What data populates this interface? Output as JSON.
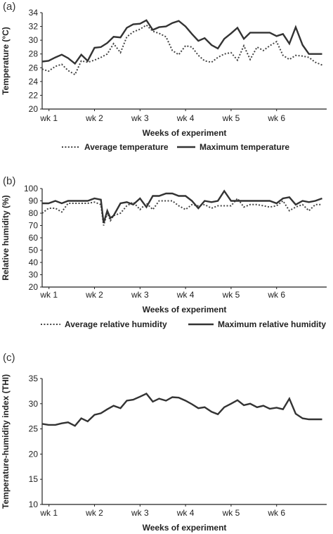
{
  "panels": [
    {
      "label": "(a)",
      "chart_data": {
        "type": "line",
        "xlabel": "Weeks of experiment",
        "ylabel": "Temperature (°C)",
        "ylim": [
          20,
          34
        ],
        "yticks": [
          20,
          22,
          24,
          26,
          28,
          30,
          32,
          34
        ],
        "xlim": [
          0.85,
          7.1
        ],
        "xticks": [
          {
            "label": "wk 1",
            "value": 1
          },
          {
            "label": "wk 2",
            "value": 2
          },
          {
            "label": "wk 3",
            "value": 3
          },
          {
            "label": "wk 4",
            "value": 4
          },
          {
            "label": "wk 5",
            "value": 5
          },
          {
            "label": "wk 6",
            "value": 6
          }
        ],
        "x": [
          0.85,
          0.99,
          1.14,
          1.28,
          1.42,
          1.57,
          1.71,
          1.85,
          2.0,
          2.14,
          2.28,
          2.42,
          2.57,
          2.71,
          2.85,
          3.0,
          3.14,
          3.28,
          3.42,
          3.57,
          3.71,
          3.85,
          4.0,
          4.14,
          4.28,
          4.42,
          4.57,
          4.71,
          4.85,
          5.0,
          5.14,
          5.28,
          5.42,
          5.57,
          5.71,
          5.85,
          6.0,
          6.14,
          6.28,
          6.42,
          6.57,
          6.71,
          6.85,
          7.0
        ],
        "series": [
          {
            "name": "Average temperature",
            "style": "dotted",
            "values": [
              25.8,
              25.5,
              26.2,
              26.5,
              25.6,
              25.0,
              27.0,
              26.8,
              27.1,
              27.5,
              28.0,
              29.5,
              28.2,
              30.5,
              31.2,
              31.6,
              32.2,
              31.3,
              31.0,
              30.5,
              28.5,
              27.9,
              29.2,
              29.0,
              27.8,
              27.0,
              26.8,
              27.5,
              28.0,
              28.2,
              27.1,
              29.2,
              27.2,
              29.0,
              28.5,
              29.2,
              29.8,
              27.8,
              27.2,
              27.8,
              27.7,
              27.5,
              26.8,
              26.4
            ]
          },
          {
            "name": "Maximum temperature",
            "style": "solid",
            "values": [
              26.9,
              27.0,
              27.5,
              27.9,
              27.4,
              26.6,
              27.9,
              27.0,
              28.9,
              29.0,
              29.6,
              30.5,
              30.4,
              31.8,
              32.3,
              32.4,
              32.9,
              31.5,
              31.9,
              32.0,
              32.5,
              32.8,
              32.0,
              30.9,
              29.9,
              30.3,
              29.3,
              28.8,
              30.2,
              31.0,
              31.8,
              30.2,
              31.1,
              31.1,
              31.1,
              31.1,
              30.6,
              30.9,
              29.5,
              31.9,
              29.3,
              28.0,
              28.0,
              28.0
            ]
          }
        ]
      }
    },
    {
      "label": "(b)",
      "chart_data": {
        "type": "line",
        "xlabel": "Weeks of experiment",
        "ylabel": "Relative humidity (%)",
        "ylim": [
          20,
          100
        ],
        "yticks": [
          20,
          30,
          40,
          50,
          60,
          70,
          80,
          90,
          100
        ],
        "xlim": [
          0.85,
          7.1
        ],
        "xticks": [
          {
            "label": "wk 1",
            "value": 1
          },
          {
            "label": "wk 2",
            "value": 2
          },
          {
            "label": "wk 3",
            "value": 3
          },
          {
            "label": "wk 4",
            "value": 4
          },
          {
            "label": "wk 5",
            "value": 5
          },
          {
            "label": "wk 6",
            "value": 6
          }
        ],
        "x": [
          0.85,
          0.99,
          1.14,
          1.28,
          1.42,
          1.57,
          1.71,
          1.85,
          2.0,
          2.14,
          2.2,
          2.28,
          2.35,
          2.42,
          2.57,
          2.71,
          2.85,
          3.0,
          3.14,
          3.28,
          3.42,
          3.57,
          3.71,
          3.85,
          4.0,
          4.14,
          4.28,
          4.42,
          4.57,
          4.71,
          4.85,
          5.0,
          5.14,
          5.28,
          5.42,
          5.57,
          5.71,
          5.85,
          6.0,
          6.14,
          6.28,
          6.42,
          6.57,
          6.71,
          6.85,
          7.0
        ],
        "series": [
          {
            "name": "Average relative humidity",
            "style": "dotted",
            "values": [
              80,
              84,
              84,
              81,
              88,
              88,
              88,
              88,
              89,
              87,
              70,
              80,
              74,
              78,
              80,
              86,
              89,
              83,
              88,
              83,
              90,
              90,
              90,
              86,
              83,
              87,
              86,
              87,
              84,
              86,
              86,
              86,
              92,
              85,
              87,
              87,
              86,
              85,
              86,
              90,
              82,
              85,
              87,
              82,
              87,
              87
            ]
          },
          {
            "name": "Maximum relative humidity",
            "style": "solid",
            "values": [
              88,
              88,
              90,
              88,
              90,
              90,
              90,
              90,
              92,
              91,
              72,
              82,
              76,
              78,
              88,
              89,
              87,
              92,
              85,
              94,
              94,
              96,
              96,
              94,
              94,
              90,
              84,
              90,
              89,
              90,
              98,
              90,
              90,
              90,
              90,
              90,
              90,
              90,
              88,
              92,
              93,
              87,
              90,
              89,
              90,
              92
            ]
          }
        ]
      }
    },
    {
      "label": "(c)",
      "chart_data": {
        "type": "line",
        "xlabel": "Weeks of experiment",
        "ylabel": "Temperature-humidity index (THI)",
        "ylim": [
          10,
          35
        ],
        "yticks": [
          10,
          15,
          20,
          25,
          30,
          35
        ],
        "xlim": [
          0.85,
          7.1
        ],
        "xticks": [
          {
            "label": "wk 1",
            "value": 1
          },
          {
            "label": "wk 2",
            "value": 2
          },
          {
            "label": "wk 3",
            "value": 3
          },
          {
            "label": "wk 4",
            "value": 4
          },
          {
            "label": "wk 5",
            "value": 5
          },
          {
            "label": "wk 6",
            "value": 6
          }
        ],
        "x": [
          0.85,
          0.99,
          1.14,
          1.28,
          1.42,
          1.57,
          1.71,
          1.85,
          2.0,
          2.14,
          2.28,
          2.42,
          2.57,
          2.71,
          2.85,
          3.0,
          3.14,
          3.28,
          3.42,
          3.57,
          3.71,
          3.85,
          4.0,
          4.14,
          4.28,
          4.42,
          4.57,
          4.71,
          4.85,
          5.0,
          5.14,
          5.28,
          5.42,
          5.57,
          5.71,
          5.85,
          6.0,
          6.14,
          6.28,
          6.42,
          6.57,
          6.71,
          6.85,
          7.0
        ],
        "series": [
          {
            "name": "THI",
            "style": "solid",
            "values": [
              26.0,
              25.8,
              25.8,
              26.1,
              26.3,
              25.6,
              27.1,
              26.5,
              27.8,
              28.1,
              28.9,
              29.6,
              29.1,
              30.6,
              30.8,
              31.4,
              32.0,
              30.4,
              31.0,
              30.6,
              31.3,
              31.2,
              30.6,
              29.9,
              29.1,
              29.3,
              28.4,
              27.9,
              29.3,
              30.0,
              30.7,
              29.7,
              30.0,
              29.3,
              29.6,
              29.0,
              29.2,
              28.9,
              31.0,
              28.0,
              27.1,
              26.9,
              26.9,
              26.9
            ]
          }
        ]
      }
    }
  ]
}
